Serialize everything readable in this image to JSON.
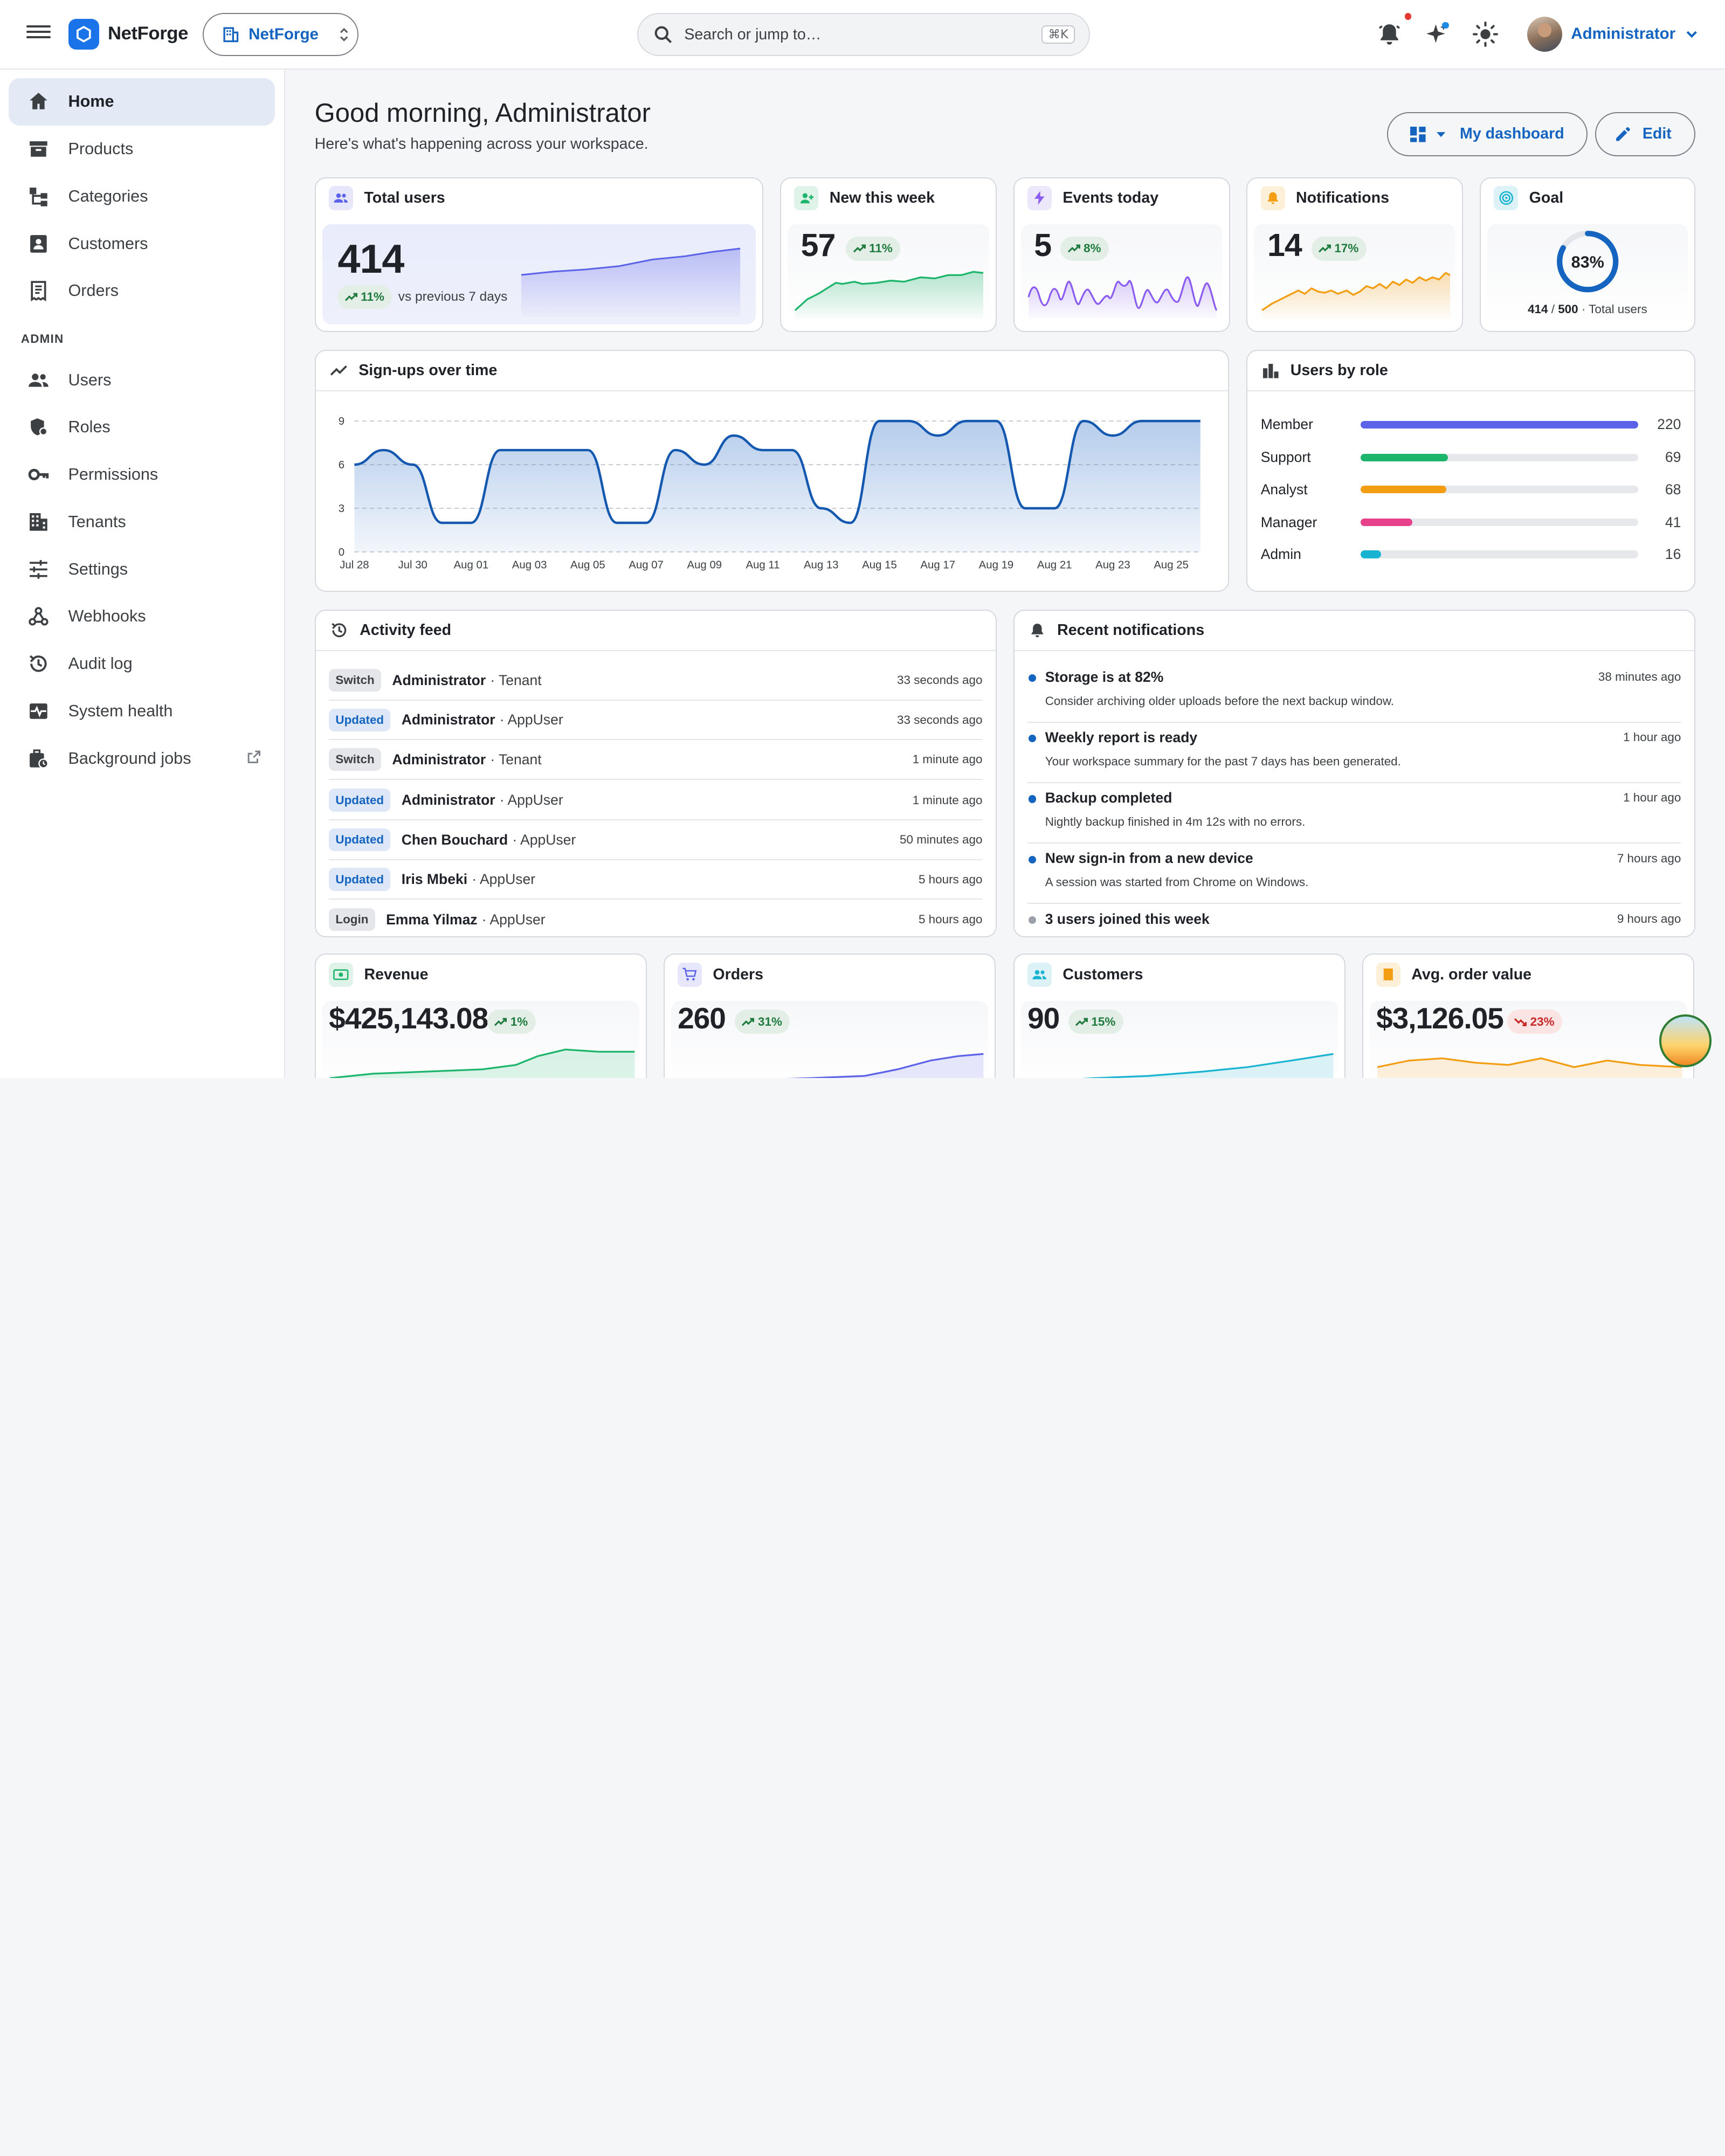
{
  "header": {
    "brand": "NetForge",
    "tenant": "NetForge",
    "search_placeholder": "Search or jump to…",
    "search_shortcut": "⌘K",
    "user_name": "Administrator"
  },
  "sidebar": {
    "items": [
      {
        "label": "Home",
        "icon": "home-icon"
      },
      {
        "label": "Products",
        "icon": "archive-icon"
      },
      {
        "label": "Categories",
        "icon": "category-tree-icon"
      },
      {
        "label": "Customers",
        "icon": "contact-card-icon"
      },
      {
        "label": "Orders",
        "icon": "receipt-icon"
      }
    ],
    "admin_label": "ADMIN",
    "admin_items": [
      {
        "label": "Users",
        "icon": "users-icon"
      },
      {
        "label": "Roles",
        "icon": "shield-user-icon"
      },
      {
        "label": "Permissions",
        "icon": "key-icon"
      },
      {
        "label": "Tenants",
        "icon": "building-icon"
      },
      {
        "label": "Settings",
        "icon": "sliders-icon"
      },
      {
        "label": "Webhooks",
        "icon": "webhook-icon"
      },
      {
        "label": "Audit log",
        "icon": "history-icon"
      },
      {
        "label": "System health",
        "icon": "monitor-heart-icon"
      },
      {
        "label": "Background jobs",
        "icon": "jobs-icon"
      }
    ]
  },
  "main": {
    "greeting": "Good morning, Administrator",
    "subtitle": "Here's what's happening across your workspace.",
    "dashboard_button": "My dashboard",
    "edit_button": "Edit"
  },
  "stats": {
    "total_users": {
      "title": "Total users",
      "value": "414",
      "change": "11%",
      "caption": "vs previous 7 days"
    },
    "new_week": {
      "title": "New this week",
      "value": "57",
      "change": "11%"
    },
    "events_today": {
      "title": "Events today",
      "value": "5",
      "change": "8%"
    },
    "notifications": {
      "title": "Notifications",
      "value": "14",
      "change": "17%"
    },
    "goal": {
      "title": "Goal",
      "percent_label": "83%",
      "percent": 0.83,
      "current": "414",
      "separator": "/",
      "target": "500",
      "caption": "· Total users"
    }
  },
  "signups": {
    "title": "Sign-ups over time"
  },
  "roles": {
    "title": "Users by role",
    "rows": [
      {
        "name": "Member",
        "value": "220",
        "color": "#5c63e8"
      },
      {
        "name": "Support",
        "value": "69",
        "color": "#1db46c"
      },
      {
        "name": "Analyst",
        "value": "68",
        "color": "#f29d12"
      },
      {
        "name": "Manager",
        "value": "41",
        "color": "#e8418c"
      },
      {
        "name": "Admin",
        "value": "16",
        "color": "#17b3d1"
      }
    ]
  },
  "activity": {
    "title": "Activity feed",
    "rows": [
      {
        "tag": "Switch",
        "kind": "switch",
        "who": "Administrator",
        "what": "· Tenant",
        "when": "33 seconds ago"
      },
      {
        "tag": "Updated",
        "kind": "updated",
        "who": "Administrator",
        "what": "· AppUser",
        "when": "33 seconds ago"
      },
      {
        "tag": "Switch",
        "kind": "switch",
        "who": "Administrator",
        "what": "· Tenant",
        "when": "1 minute ago"
      },
      {
        "tag": "Updated",
        "kind": "updated",
        "who": "Administrator",
        "what": "· AppUser",
        "when": "1 minute ago"
      },
      {
        "tag": "Updated",
        "kind": "updated",
        "who": "Chen Bouchard",
        "what": "· AppUser",
        "when": "50 minutes ago"
      },
      {
        "tag": "Updated",
        "kind": "updated",
        "who": "Iris Mbeki",
        "what": "· AppUser",
        "when": "5 hours ago"
      },
      {
        "tag": "Login",
        "kind": "login",
        "who": "Emma Yilmaz",
        "what": "· AppUser",
        "when": "5 hours ago"
      }
    ]
  },
  "notifications_panel": {
    "title": "Recent notifications",
    "rows": [
      {
        "title": "Storage is at 82%",
        "desc": "Consider archiving older uploads before the next backup window.",
        "when": "38 minutes ago"
      },
      {
        "title": "Weekly report is ready",
        "desc": "Your workspace summary for the past 7 days has been generated.",
        "when": "1 hour ago"
      },
      {
        "title": "Backup completed",
        "desc": "Nightly backup finished in 4m 12s with no errors.",
        "when": "1 hour ago"
      },
      {
        "title": "New sign-in from a new device",
        "desc": "A session was started from Chrome on Windows.",
        "when": "7 hours ago"
      },
      {
        "title": "3 users joined this week",
        "desc": "",
        "when": "9 hours ago"
      }
    ]
  },
  "kpis": {
    "revenue": {
      "title": "Revenue",
      "value": "$425,143.08",
      "change": "1%"
    },
    "orders": {
      "title": "Orders",
      "value": "260",
      "change": "31%"
    },
    "customers": {
      "title": "Customers",
      "value": "90",
      "change": "15%"
    },
    "aov": {
      "title": "Avg. order value",
      "value": "$3,126.05",
      "change": "23%"
    }
  },
  "chart_data": {
    "type": "area",
    "title": "Sign-ups over time",
    "x": [
      "Jul 28",
      "Jul 29",
      "Jul 30",
      "Jul 31",
      "Aug 01",
      "Aug 02",
      "Aug 03",
      "Aug 04",
      "Aug 05",
      "Aug 06",
      "Aug 07",
      "Aug 08",
      "Aug 09",
      "Aug 10",
      "Aug 11",
      "Aug 12",
      "Aug 13",
      "Aug 14",
      "Aug 15",
      "Aug 16",
      "Aug 17",
      "Aug 18",
      "Aug 19",
      "Aug 20",
      "Aug 21",
      "Aug 22",
      "Aug 23",
      "Aug 24",
      "Aug 25",
      "Aug 26"
    ],
    "tick_labels": [
      "Jul 28",
      "Jul 30",
      "Aug 01",
      "Aug 03",
      "Aug 05",
      "Aug 07",
      "Aug 09",
      "Aug 11",
      "Aug 13",
      "Aug 15",
      "Aug 17",
      "Aug 19",
      "Aug 21",
      "Aug 23",
      "Aug 25"
    ],
    "values": [
      6,
      7,
      6,
      2,
      2,
      7,
      7,
      7,
      7,
      2,
      2,
      7,
      6,
      8,
      7,
      7,
      3,
      2,
      9,
      9,
      8,
      9,
      9,
      3,
      3,
      9,
      8,
      9,
      9,
      9
    ],
    "ylim": [
      0,
      9
    ],
    "yticks": [
      0,
      3,
      6,
      9
    ],
    "grid": true,
    "color": "#1558b0"
  }
}
